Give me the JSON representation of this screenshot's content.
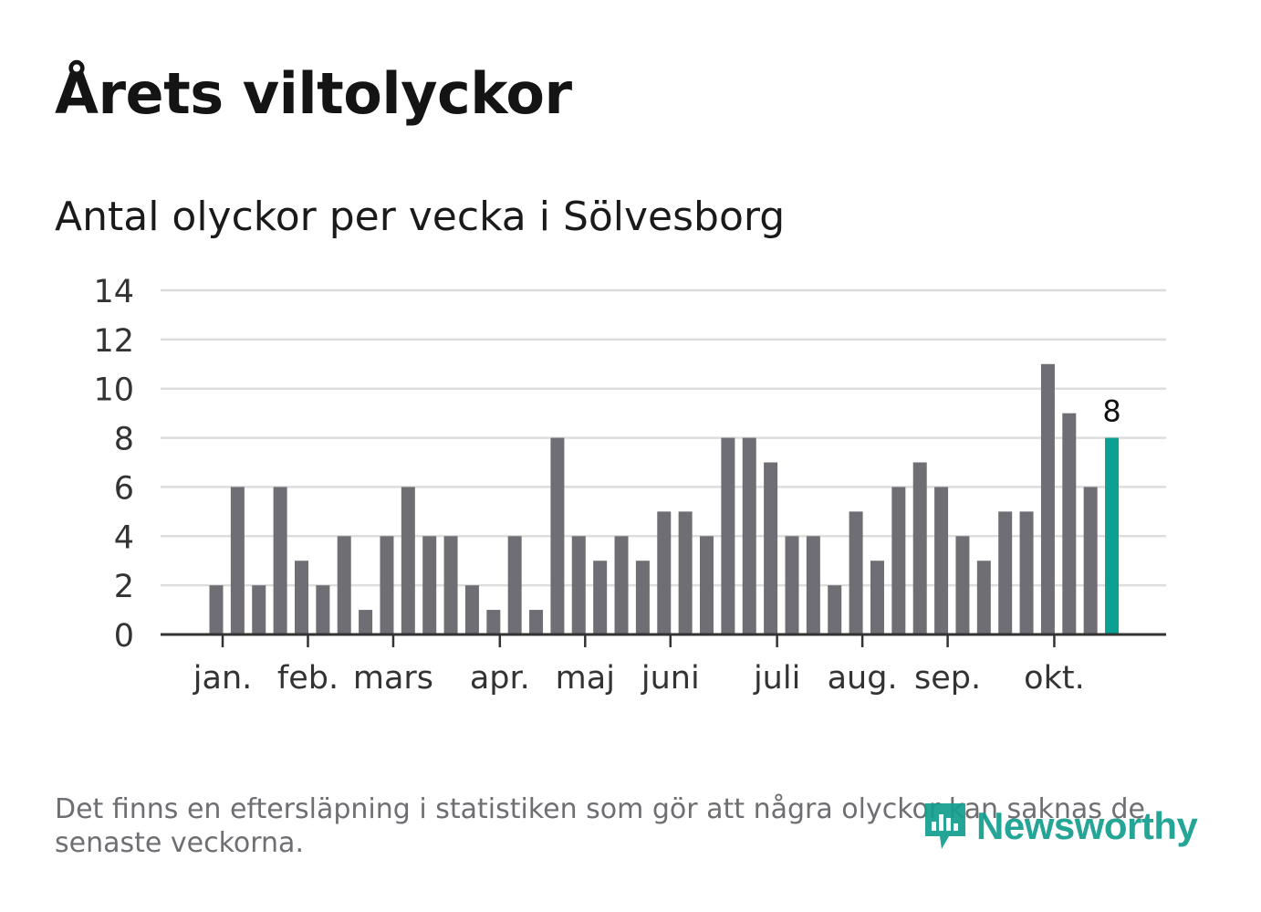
{
  "header": {
    "title": "Årets viltolyckor",
    "subtitle": "Antal olyckor per vecka i Sölvesborg"
  },
  "footnote": "Det finns en eftersläpning i statistiken som gör att några olyckor kan saknas de senaste veckorna.",
  "logo": {
    "text": "Newsworthy",
    "icon": "newsworthy-logo-icon"
  },
  "colors": {
    "bar": "#6f6e74",
    "highlight": "#0aa192",
    "grid": "#dddddd",
    "axis": "#333333",
    "text": "#333333"
  },
  "chart_data": {
    "type": "bar",
    "title": "Antal olyckor per vecka i Sölvesborg",
    "xlabel": "",
    "ylabel": "",
    "ylim": [
      0,
      14
    ],
    "yticks": [
      "0",
      "2",
      "4",
      "6",
      "8",
      "10",
      "12",
      "14"
    ],
    "grid": true,
    "weeks": [
      1,
      2,
      3,
      4,
      5,
      6,
      7,
      8,
      9,
      10,
      11,
      12,
      13,
      14,
      15,
      16,
      17,
      18,
      19,
      20,
      21,
      22,
      23,
      24,
      25,
      26,
      27,
      28,
      29,
      30,
      31,
      32,
      33,
      34,
      35,
      36,
      37,
      38,
      39,
      40,
      41,
      42,
      43
    ],
    "values": [
      2,
      6,
      2,
      6,
      3,
      2,
      4,
      1,
      4,
      6,
      4,
      4,
      2,
      1,
      4,
      1,
      8,
      4,
      3,
      4,
      3,
      5,
      5,
      4,
      8,
      8,
      7,
      4,
      4,
      2,
      5,
      3,
      6,
      7,
      6,
      4,
      3,
      5,
      5,
      11,
      9,
      6,
      8
    ],
    "highlight": {
      "week": 43,
      "value": 8,
      "label": "8"
    },
    "month_labels": [
      {
        "label": "jan.",
        "week": 1.3
      },
      {
        "label": "feb.",
        "week": 5.3
      },
      {
        "label": "mars",
        "week": 9.3
      },
      {
        "label": "apr.",
        "week": 14.3
      },
      {
        "label": "maj",
        "week": 18.3
      },
      {
        "label": "juni",
        "week": 22.3
      },
      {
        "label": "juli",
        "week": 27.3
      },
      {
        "label": "aug.",
        "week": 31.3
      },
      {
        "label": "sep.",
        "week": 35.3
      },
      {
        "label": "okt.",
        "week": 40.3
      }
    ]
  }
}
